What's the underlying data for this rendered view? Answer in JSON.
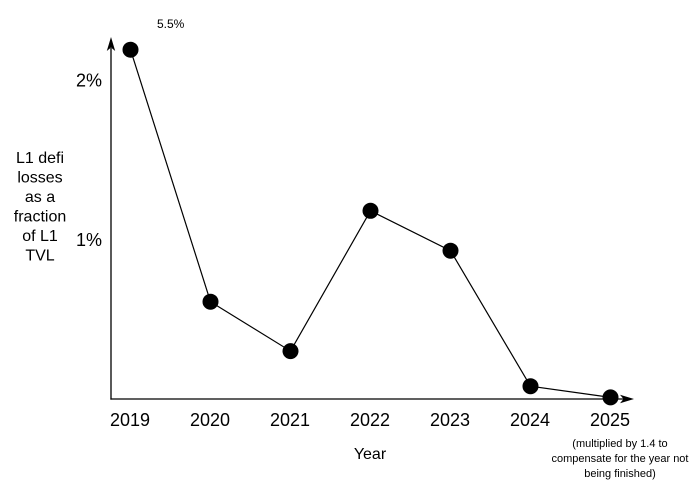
{
  "chart_data": {
    "type": "line",
    "title": "",
    "x": [
      "2019",
      "2020",
      "2021",
      "2022",
      "2023",
      "2024",
      "2025"
    ],
    "series": [
      {
        "name": "L1 defi losses as a fraction of L1 TVL",
        "values_percent": [
          5.5,
          0.61,
          0.3,
          1.18,
          0.93,
          0.08,
          0.01
        ],
        "plotted_percent": [
          2.19,
          0.61,
          0.3,
          1.18,
          0.93,
          0.08,
          0.01
        ]
      }
    ],
    "point_annotations": [
      {
        "x": "2019",
        "label": "5.5%",
        "note": "actual value 5.5%, point drawn clipped near top of axis"
      }
    ],
    "xlabel": "Year",
    "ylabel": "L1 defi losses as a fraction of L1 TVL",
    "ylabel_lines": [
      "L1 defi",
      "losses",
      "as a",
      "fraction",
      "of L1",
      "TVL"
    ],
    "yticks": [
      {
        "label": "2%",
        "value": 2
      },
      {
        "label": "1%",
        "value": 1
      }
    ],
    "x_axis_note": "(multiplied by 1.4 to compensate for the year not being finished)",
    "x_axis_note_lines": [
      "(multiplied by 1.4 to",
      "compensate for the year not",
      "being finished)"
    ],
    "ylim": [
      0,
      2.25
    ],
    "grid": false,
    "legend": "none",
    "marker": "filled-circle",
    "line_color": "#000000",
    "marker_color": "#000000",
    "background": "#ffffff"
  }
}
